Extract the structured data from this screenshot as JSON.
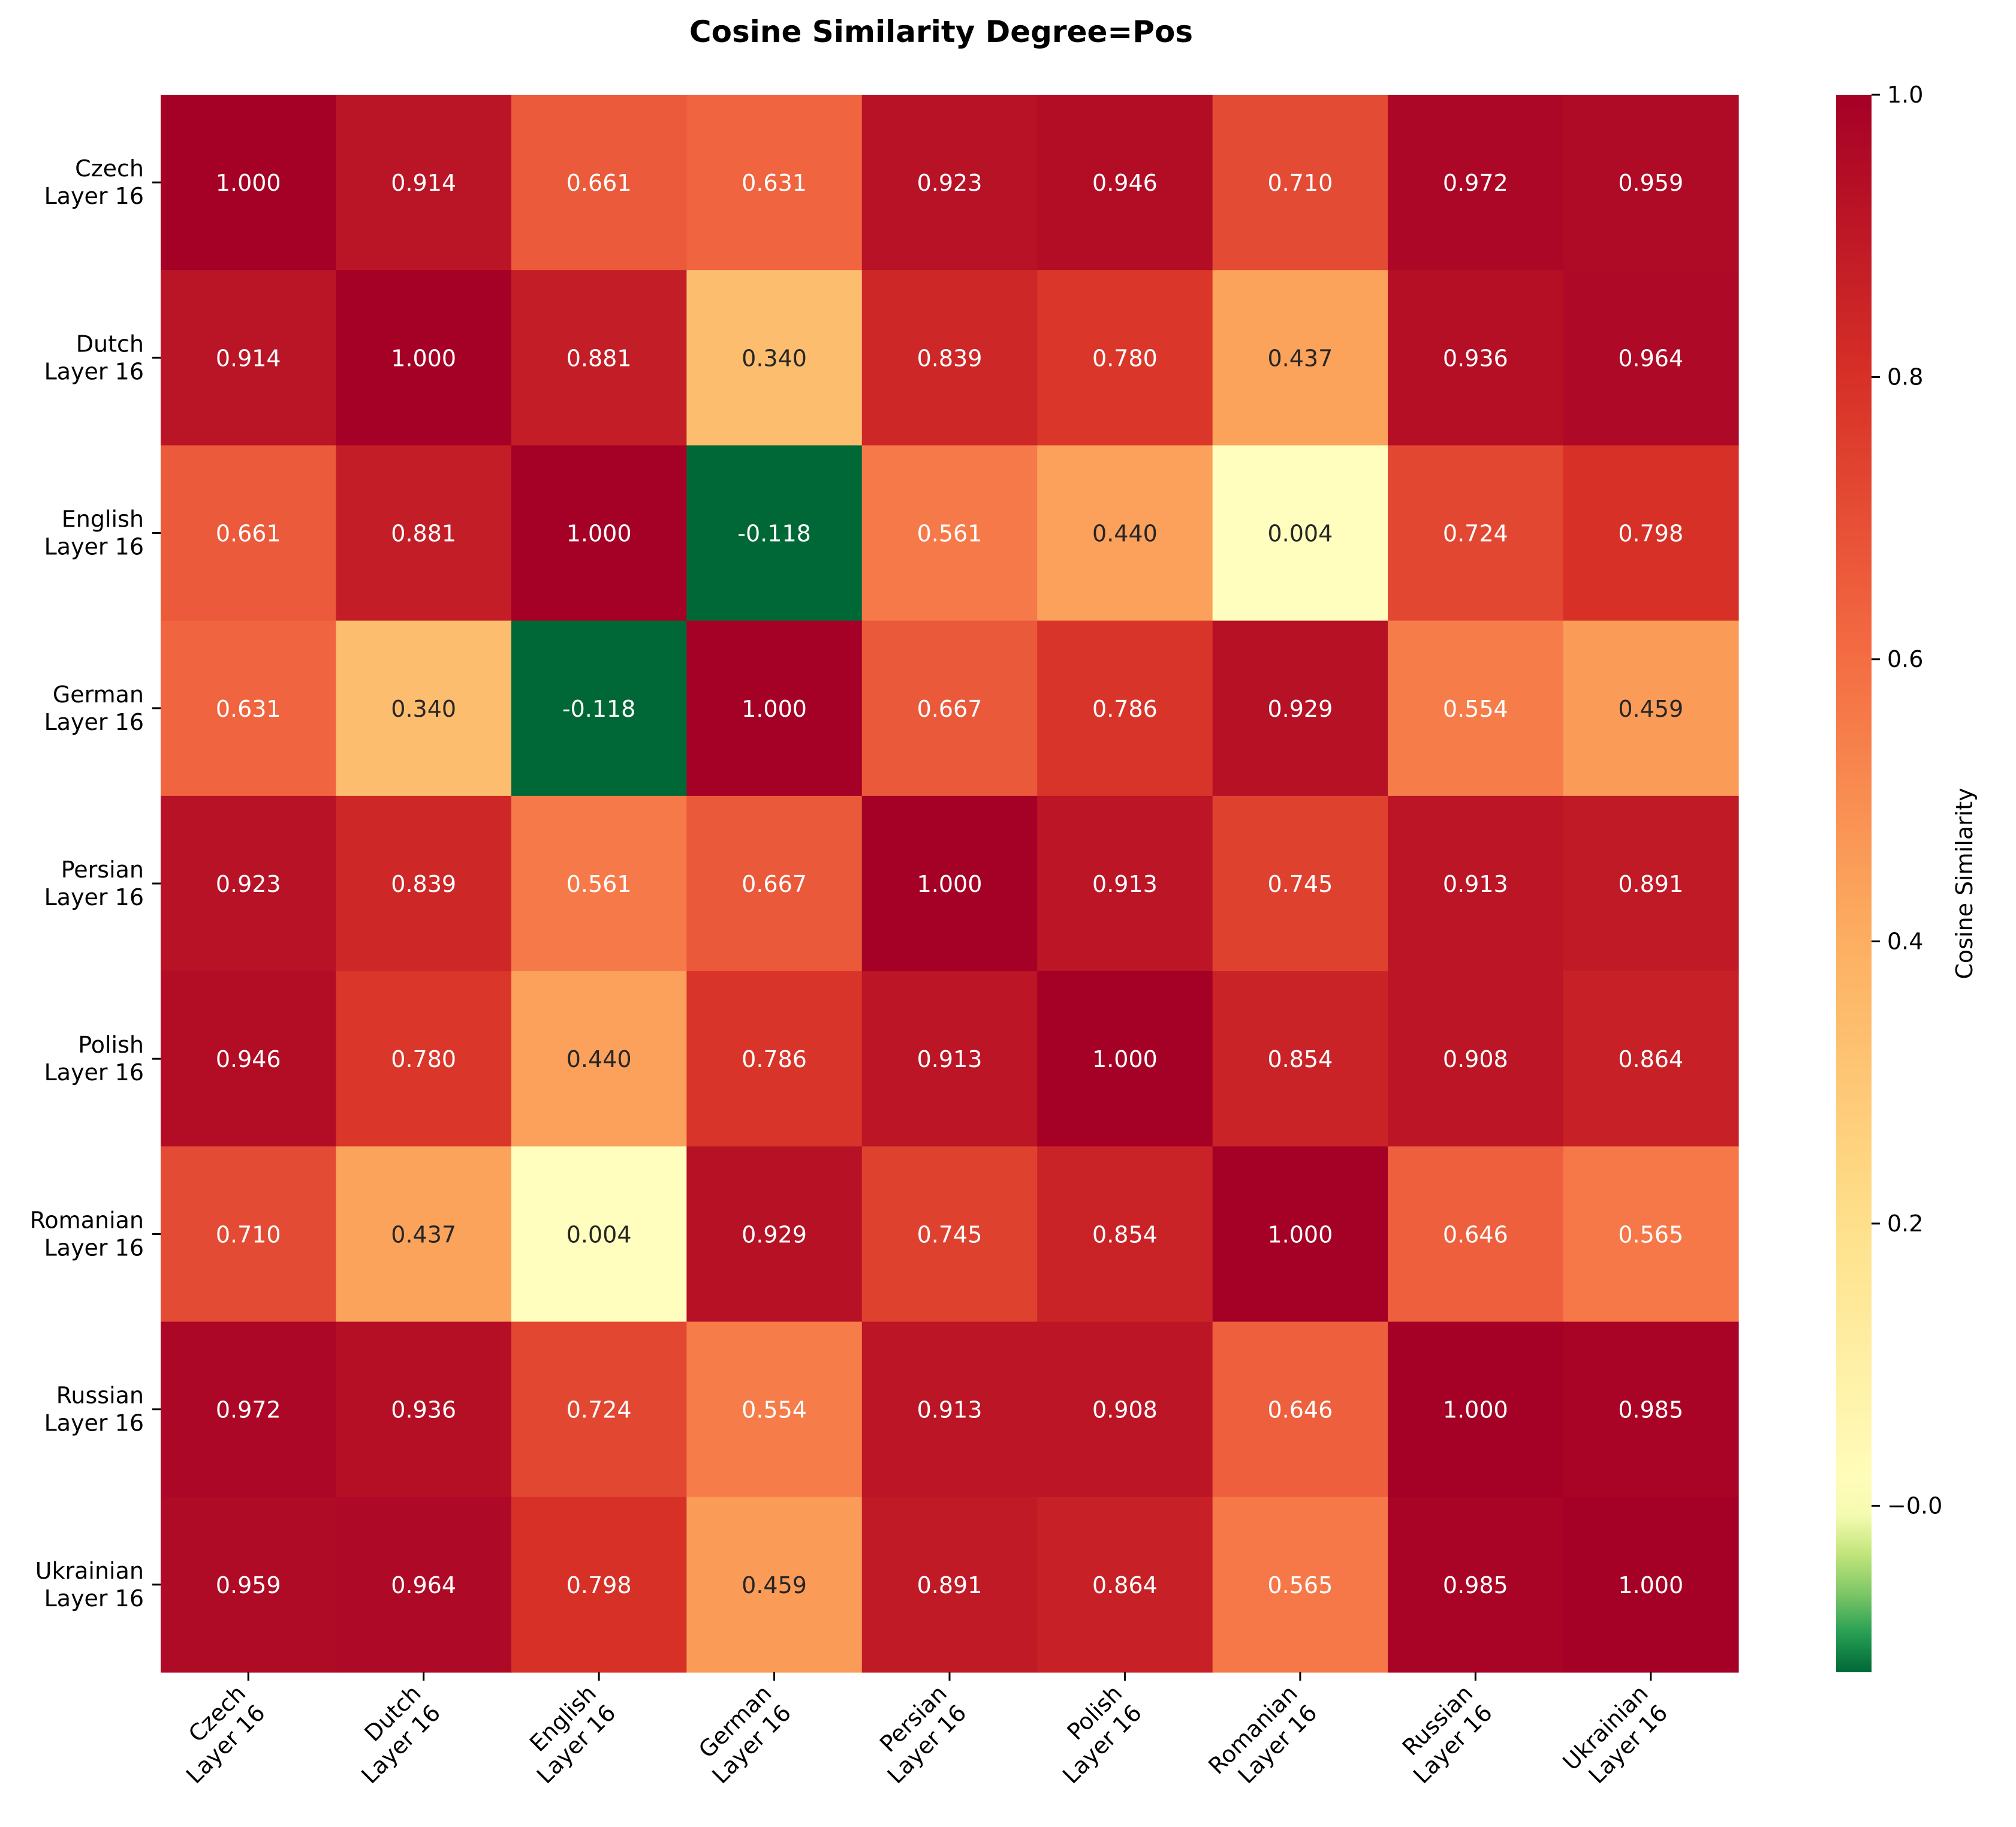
{
  "chart_data": {
    "type": "heatmap",
    "title": "Cosine Similarity Degree=Pos",
    "row_labels": [
      [
        "Czech",
        "Layer 16"
      ],
      [
        "Dutch",
        "Layer 16"
      ],
      [
        "English",
        "Layer 16"
      ],
      [
        "German",
        "Layer 16"
      ],
      [
        "Persian",
        "Layer 16"
      ],
      [
        "Polish",
        "Layer 16"
      ],
      [
        "Romanian",
        "Layer 16"
      ],
      [
        "Russian",
        "Layer 16"
      ],
      [
        "Ukrainian",
        "Layer 16"
      ]
    ],
    "col_labels": [
      [
        "Czech",
        "Layer 16"
      ],
      [
        "Dutch",
        "Layer 16"
      ],
      [
        "English",
        "Layer 16"
      ],
      [
        "German",
        "Layer 16"
      ],
      [
        "Persian",
        "Layer 16"
      ],
      [
        "Polish",
        "Layer 16"
      ],
      [
        "Romanian",
        "Layer 16"
      ],
      [
        "Russian",
        "Layer 16"
      ],
      [
        "Ukrainian",
        "Layer 16"
      ]
    ],
    "values": [
      [
        1.0,
        0.914,
        0.661,
        0.631,
        0.923,
        0.946,
        0.71,
        0.972,
        0.959
      ],
      [
        0.914,
        1.0,
        0.881,
        0.34,
        0.839,
        0.78,
        0.437,
        0.936,
        0.964
      ],
      [
        0.661,
        0.881,
        1.0,
        -0.118,
        0.561,
        0.44,
        0.004,
        0.724,
        0.798
      ],
      [
        0.631,
        0.34,
        -0.118,
        1.0,
        0.667,
        0.786,
        0.929,
        0.554,
        0.459
      ],
      [
        0.923,
        0.839,
        0.561,
        0.667,
        1.0,
        0.913,
        0.745,
        0.913,
        0.891
      ],
      [
        0.946,
        0.78,
        0.44,
        0.786,
        0.913,
        1.0,
        0.854,
        0.908,
        0.864
      ],
      [
        0.71,
        0.437,
        0.004,
        0.929,
        0.745,
        0.854,
        1.0,
        0.646,
        0.565
      ],
      [
        0.972,
        0.936,
        0.724,
        0.554,
        0.913,
        0.908,
        0.646,
        1.0,
        0.985
      ],
      [
        0.959,
        0.964,
        0.798,
        0.459,
        0.891,
        0.864,
        0.565,
        0.985,
        1.0
      ]
    ],
    "value_format": "3 decimals",
    "colormap": "RdYlGn_r",
    "vmin": -0.118,
    "vmax": 1.0,
    "colorbar": {
      "label": "Cosine Similarity",
      "ticks": [
        -0.0,
        0.2,
        0.4,
        0.6,
        0.8,
        1.0
      ],
      "tick_labels": [
        "−0.0",
        "0.2",
        "0.4",
        "0.6",
        "0.8",
        "1.0"
      ]
    },
    "xlabel": "",
    "ylabel": "",
    "grid": false
  }
}
